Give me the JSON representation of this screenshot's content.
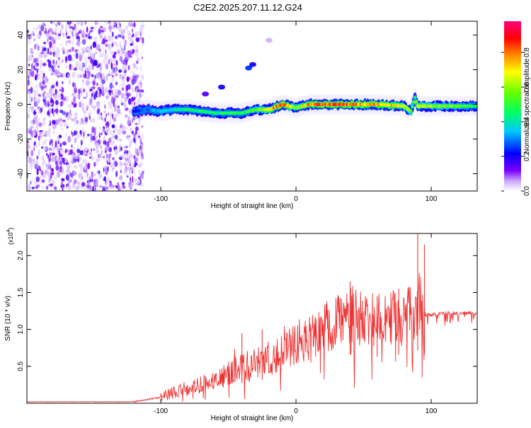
{
  "title": "C2E2.2025.207.11.12.G24",
  "chart_data": [
    {
      "type": "heatmap",
      "xlabel": "Height of straight line (km)",
      "ylabel": "Frequency (Hz)",
      "xlim": [
        -199,
        134
      ],
      "ylim": [
        -50,
        48
      ],
      "xticks": [
        -100,
        0,
        100
      ],
      "yticks": [
        -40,
        -20,
        0,
        20,
        40
      ],
      "colorbar": {
        "label": "Normalized spectral amplitude",
        "range": [
          0,
          0.98
        ],
        "ticks": [
          "0.0",
          "0.2",
          "0.4",
          "0.6",
          "0.8"
        ],
        "colors": [
          "#ffffff",
          "#7a00ff",
          "#0000ff",
          "#00c8ff",
          "#00ff66",
          "#66ff00",
          "#ffff00",
          "#ff8800",
          "#ff0000",
          "#ff0080"
        ]
      },
      "noise_region_x": [
        -199,
        -113
      ],
      "ridge": {
        "x": [
          -120,
          -110,
          -100,
          -90,
          -80,
          -70,
          -60,
          -50,
          -40,
          -30,
          -20,
          -10,
          0,
          10,
          20,
          40,
          60,
          80,
          85,
          88,
          90,
          100,
          120,
          134
        ],
        "y": [
          -4,
          -3,
          -4,
          -3,
          -3,
          -4,
          -5,
          -5,
          -5,
          -3,
          -3,
          0,
          -2,
          0,
          0,
          0,
          0,
          -1,
          -4,
          4,
          -1,
          -1,
          -1,
          -1
        ],
        "amplitude": [
          0.2,
          0.3,
          0.35,
          0.4,
          0.45,
          0.45,
          0.45,
          0.5,
          0.5,
          0.55,
          0.7,
          0.9,
          0.6,
          0.8,
          0.85,
          0.85,
          0.8,
          0.7,
          0.6,
          0.5,
          0.7,
          0.6,
          0.55,
          0.5
        ]
      },
      "blobs": [
        {
          "x": -67,
          "y": 6,
          "amplitude": 0.15
        },
        {
          "x": -55,
          "y": 10,
          "amplitude": 0.2
        },
        {
          "x": -35,
          "y": 21,
          "amplitude": 0.25
        },
        {
          "x": -32,
          "y": 23,
          "amplitude": 0.2
        },
        {
          "x": -20,
          "y": 37,
          "amplitude": 0.05
        }
      ]
    },
    {
      "type": "line",
      "xlabel": "Height of straight line (km)",
      "ylabel": "SNR (10 * v/v)",
      "y_multiplier": "(x10",
      "y_multiplier_exp": "4",
      "y_multiplier_close": ")",
      "xlim": [
        -199,
        134
      ],
      "ylim": [
        0,
        2.3
      ],
      "xticks": [
        -100,
        0,
        100
      ],
      "yticks": [
        0.5,
        1.0,
        1.5,
        2.0
      ],
      "color": "#ee3333",
      "envelope": {
        "x": [
          -199,
          -120,
          -100,
          -90,
          -80,
          -60,
          -50,
          -40,
          -30,
          -20,
          -10,
          0,
          10,
          20,
          30,
          40,
          50,
          60,
          70,
          80,
          88,
          90,
          92,
          94,
          100,
          110,
          120,
          134
        ],
        "y": [
          0.02,
          0.02,
          0.08,
          0.15,
          0.2,
          0.3,
          0.4,
          0.5,
          0.55,
          0.6,
          0.7,
          0.8,
          0.9,
          1.0,
          1.1,
          1.2,
          1.15,
          1.15,
          1.2,
          1.2,
          1.25,
          1.3,
          1.35,
          1.2,
          1.2,
          1.22,
          1.22,
          1.22
        ]
      },
      "peaks": [
        {
          "x": -40,
          "y": 0.95
        },
        {
          "x": -25,
          "y": 1.0
        },
        {
          "x": 40,
          "y": 1.65
        },
        {
          "x": 60,
          "y": 1.45
        },
        {
          "x": 76,
          "y": 1.55
        },
        {
          "x": 90,
          "y": 2.3
        },
        {
          "x": 95,
          "y": 2.15
        }
      ]
    }
  ]
}
